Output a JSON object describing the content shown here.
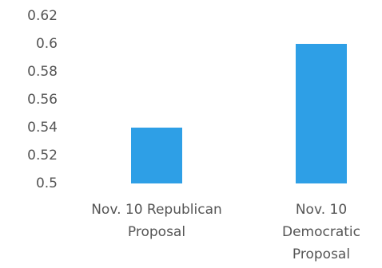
{
  "chart_data": {
    "type": "bar",
    "categories": [
      [
        "Nov. 10 Republican",
        "Proposal"
      ],
      [
        "Nov. 10",
        "Democratic",
        "Proposal"
      ]
    ],
    "values": [
      0.54,
      0.6
    ],
    "ylim": [
      0.5,
      0.62
    ],
    "yticks": [
      "0.62",
      "0.6",
      "0.58",
      "0.56",
      "0.54",
      "0.52",
      "0.5"
    ],
    "title": "",
    "xlabel": "",
    "ylabel": "",
    "grid": false,
    "legend": "none",
    "bar_color": "#2e9fe6"
  }
}
